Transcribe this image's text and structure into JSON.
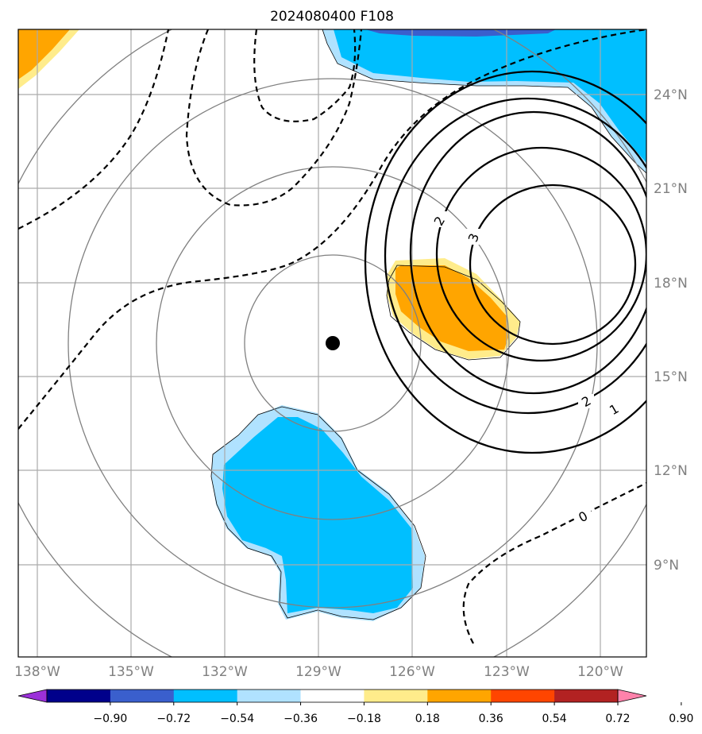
{
  "map": {
    "title": "2024080400 F108",
    "extent_lon": [
      -138.4,
      -119.4
    ],
    "extent_lat": [
      6.7,
      26.2
    ],
    "gridlines": true,
    "lon_labels": [
      "138°W",
      "135°W",
      "132°W",
      "129°W",
      "126°W",
      "123°W",
      "120°W"
    ],
    "lat_labels": [
      "24°N",
      "21°N",
      "18°N",
      "15°N",
      "12°N",
      "9°N"
    ],
    "center_marker": {
      "name": "storm-center",
      "lon": -128.6,
      "lat": 16.0
    },
    "contour_labels": [
      "2",
      "3",
      "2",
      "1",
      "0"
    ]
  },
  "colorbar": {
    "ticks": [
      "−0.90",
      "−0.72",
      "−0.54",
      "−0.36",
      "−0.18",
      "0.18",
      "0.36",
      "0.54",
      "0.72",
      "0.90"
    ],
    "colors": [
      "#9b30d9",
      "#00008b",
      "#3a5fcd",
      "#00bfff",
      "#b0e2ff",
      "#ffffff",
      "#ffec8b",
      "#ffa500",
      "#ff4500",
      "#b22222",
      "#ff82ab"
    ]
  }
}
